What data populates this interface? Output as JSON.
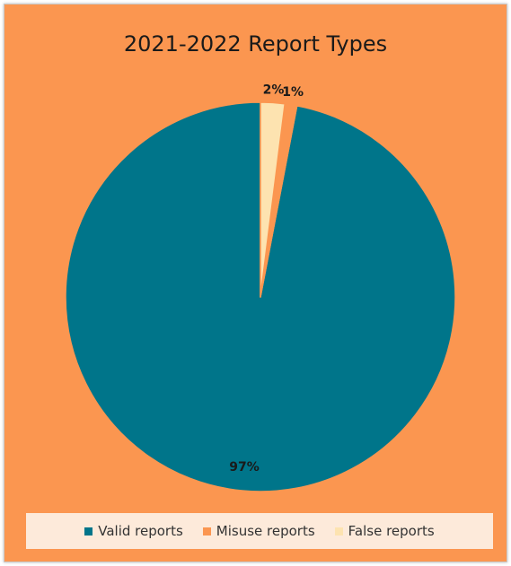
{
  "chart_data": {
    "type": "pie",
    "title": "2021-2022 Report Types",
    "series": [
      {
        "name": "Valid reports",
        "value": 97,
        "label": "97%",
        "color": "#00758A"
      },
      {
        "name": "Misuse reports",
        "value": 1,
        "label": "1%",
        "color": "#FB9650"
      },
      {
        "name": "False reports",
        "value": 2,
        "label": "2%",
        "color": "#FDE3B0"
      }
    ],
    "start_angle": "12 o'clock",
    "direction": "counter-clockwise",
    "legend_position": "bottom",
    "background_color": "#FB9650",
    "slice_border_color": "#FB9650"
  }
}
